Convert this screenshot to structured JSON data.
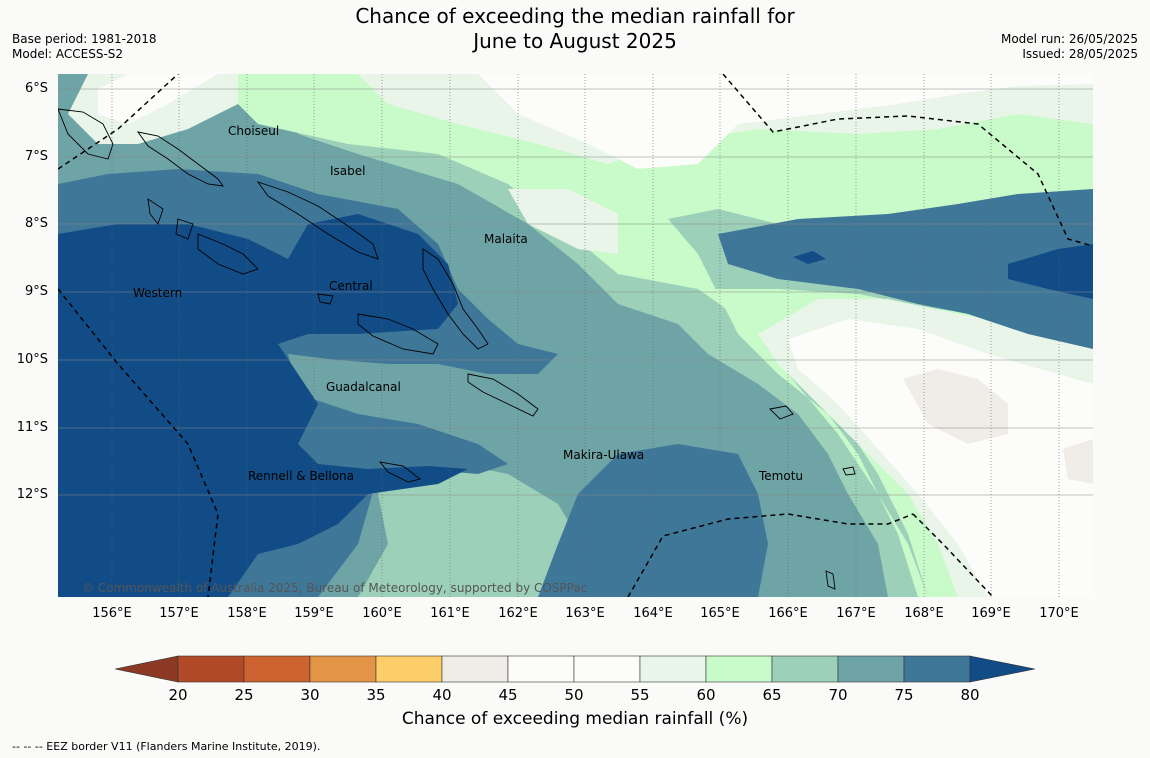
{
  "header": {
    "title_line1": "Chance of exceeding the median rainfall for",
    "title_line2": "June to August 2025",
    "base_period": "Base period: 1981-2018",
    "model": "Model: ACCESS-S2",
    "model_run": "Model run: 26/05/2025",
    "issued": "Issued: 28/05/2025"
  },
  "map": {
    "copyright": "© Commonwealth of Australia 2025, Bureau of Meteorology, supported by COSPPac",
    "lat_labels": [
      "6°S",
      "7°S",
      "8°S",
      "9°S",
      "10°S",
      "11°S",
      "12°S"
    ],
    "lon_labels": [
      "156°E",
      "157°E",
      "158°E",
      "159°E",
      "160°E",
      "161°E",
      "162°E",
      "163°E",
      "164°E",
      "165°E",
      "166°E",
      "167°E",
      "168°E",
      "169°E",
      "170°E"
    ],
    "provinces": [
      {
        "name": "Choiseul"
      },
      {
        "name": "Isabel"
      },
      {
        "name": "Malaita"
      },
      {
        "name": "Western"
      },
      {
        "name": "Central"
      },
      {
        "name": "Guadalcanal"
      },
      {
        "name": "Makira-Ulawa"
      },
      {
        "name": "Rennell & Bellona"
      },
      {
        "name": "Temotu"
      }
    ]
  },
  "colorbar": {
    "title": "Chance of exceeding median rainfall (%)",
    "ticks": [
      "20",
      "25",
      "30",
      "35",
      "40",
      "45",
      "50",
      "55",
      "60",
      "65",
      "70",
      "75",
      "80"
    ],
    "colors": {
      "below20": "#8c3a25",
      "b20_25": "#b04a27",
      "b25_30": "#cc6330",
      "b30_35": "#e39446",
      "b35_40": "#fdcd6a",
      "b40_45": "#f0ece7",
      "b45_50": "#fcfcfa",
      "b50_55": "#fcfcfa",
      "b55_60": "#e9f5e8",
      "b60_65": "#c9fac9",
      "b65_70": "#9dd0b9",
      "b70_75": "#6ea4a6",
      "b75_80": "#3f7799",
      "above80": "#124c86"
    }
  },
  "footnote": "--  --  -- EEZ border V11 (Flanders Marine Institute, 2019)."
}
